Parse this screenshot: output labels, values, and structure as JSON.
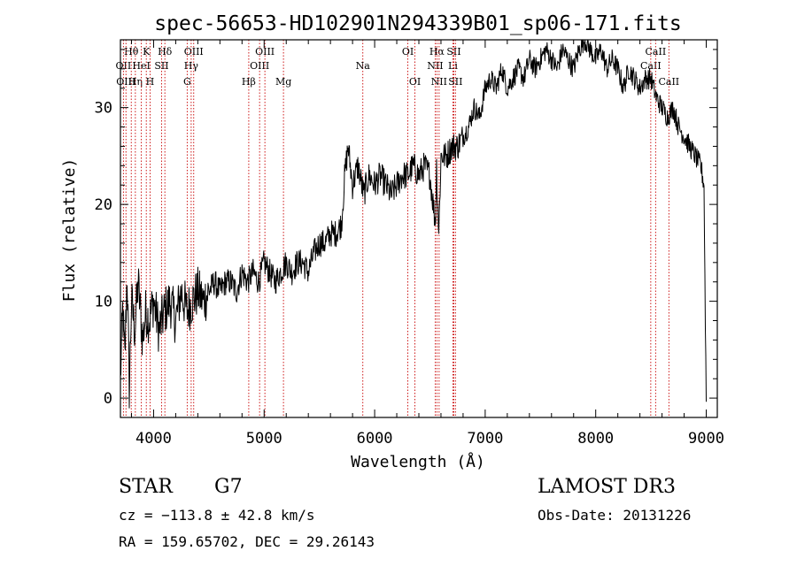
{
  "chart_data": {
    "type": "line",
    "title": "spec-56653-HD102901N294339B01_sp06-171.fits",
    "xlabel": "Wavelength (Å)",
    "ylabel": "Flux (relative)",
    "xlim": [
      3700,
      9100
    ],
    "ylim": [
      -2,
      37
    ],
    "x_ticks": [
      4000,
      5000,
      6000,
      7000,
      8000,
      9000
    ],
    "y_ticks": [
      0,
      10,
      20,
      30
    ],
    "grid": false,
    "series": [
      {
        "name": "spectrum",
        "x": [
          3700,
          3720,
          3740,
          3760,
          3780,
          3800,
          3830,
          3860,
          3900,
          3930,
          3960,
          4000,
          4050,
          4100,
          4150,
          4200,
          4250,
          4300,
          4350,
          4400,
          4450,
          4500,
          4550,
          4600,
          4650,
          4700,
          4750,
          4800,
          4850,
          4900,
          4950,
          5000,
          5050,
          5100,
          5150,
          5200,
          5250,
          5300,
          5350,
          5400,
          5450,
          5500,
          5550,
          5600,
          5650,
          5700,
          5730,
          5760,
          5800,
          5850,
          5900,
          5950,
          6000,
          6050,
          6100,
          6150,
          6200,
          6250,
          6300,
          6350,
          6400,
          6450,
          6500,
          6550,
          6560,
          6580,
          6600,
          6650,
          6700,
          6750,
          6800,
          6850,
          6900,
          6950,
          7000,
          7050,
          7100,
          7150,
          7200,
          7250,
          7300,
          7350,
          7400,
          7450,
          7500,
          7550,
          7600,
          7650,
          7700,
          7750,
          7800,
          7850,
          7900,
          7950,
          8000,
          8050,
          8100,
          8150,
          8200,
          8250,
          8300,
          8350,
          8400,
          8450,
          8500,
          8550,
          8600,
          8650,
          8700,
          8750,
          8800,
          8850,
          8900,
          8950,
          8980,
          8990,
          9000
        ],
        "y": [
          2,
          9,
          4,
          13,
          1,
          10,
          7,
          12,
          6,
          9,
          8,
          10,
          7,
          9,
          10,
          8,
          11,
          9,
          10,
          11,
          10,
          11,
          12,
          11,
          12,
          12,
          11,
          13,
          12,
          13,
          12,
          14,
          13,
          12,
          13,
          14,
          13,
          14,
          14,
          13,
          15,
          16,
          16,
          17,
          17,
          18,
          23,
          26,
          22,
          24,
          21,
          23,
          22,
          23,
          22,
          21,
          22,
          23,
          23,
          24,
          23,
          24,
          23,
          18,
          24,
          17,
          25,
          25,
          26,
          26,
          27,
          28,
          30,
          29,
          32,
          33,
          32,
          34,
          32,
          33,
          34,
          33,
          35,
          34,
          35,
          36,
          35,
          34,
          36,
          35,
          34,
          36,
          37,
          36,
          35,
          36,
          34,
          35,
          34,
          32,
          34,
          33,
          32,
          33,
          33,
          31,
          30,
          29,
          30,
          28,
          27,
          26,
          25,
          24,
          22,
          10,
          0
        ]
      }
    ],
    "line_markers": [
      {
        "label": "Hθ",
        "wavelength": 3798,
        "row": 1
      },
      {
        "label": "OII",
        "wavelength": 3727,
        "row": 2
      },
      {
        "label": "OIII",
        "wavelength": 3750,
        "row": 3
      },
      {
        "label": "Hη",
        "wavelength": 3835,
        "row": 3
      },
      {
        "label": "HeI",
        "wavelength": 3889,
        "row": 2
      },
      {
        "label": "K",
        "wavelength": 3934,
        "row": 1
      },
      {
        "label": "H",
        "wavelength": 3968,
        "row": 3
      },
      {
        "label": "SII",
        "wavelength": 4072,
        "row": 2
      },
      {
        "label": "Hδ",
        "wavelength": 4102,
        "row": 1
      },
      {
        "label": "OIII",
        "wavelength": 4363,
        "row": 1
      },
      {
        "label": "Hγ",
        "wavelength": 4340,
        "row": 2
      },
      {
        "label": "G",
        "wavelength": 4304,
        "row": 3
      },
      {
        "label": "Hβ",
        "wavelength": 4861,
        "row": 3
      },
      {
        "label": "OIII",
        "wavelength": 4959,
        "row": 2
      },
      {
        "label": "OIII",
        "wavelength": 5007,
        "row": 1
      },
      {
        "label": "Mg",
        "wavelength": 5175,
        "row": 3
      },
      {
        "label": "Na",
        "wavelength": 5893,
        "row": 2
      },
      {
        "label": "OI",
        "wavelength": 6300,
        "row": 1
      },
      {
        "label": "OI",
        "wavelength": 6364,
        "row": 3
      },
      {
        "label": "NII",
        "wavelength": 6548,
        "row": 2
      },
      {
        "label": "Hα",
        "wavelength": 6563,
        "row": 1
      },
      {
        "label": "NII",
        "wavelength": 6583,
        "row": 3
      },
      {
        "label": "Li",
        "wavelength": 6708,
        "row": 2
      },
      {
        "label": "SII",
        "wavelength": 6716,
        "row": 1
      },
      {
        "label": "SII",
        "wavelength": 6731,
        "row": 3
      },
      {
        "label": "CaII",
        "wavelength": 8498,
        "row": 2
      },
      {
        "label": "CaII",
        "wavelength": 8542,
        "row": 1
      },
      {
        "label": "CaII",
        "wavelength": 8662,
        "row": 3
      }
    ]
  },
  "info": {
    "class_label": "STAR",
    "subclass": "G7",
    "redshift_text": "cz = −113.8 ± 42.8 km/s",
    "coords_text": "RA = 159.65702, DEC =  29.26143",
    "survey": "LAMOST DR3",
    "obs_date": "Obs-Date: 20131226"
  },
  "colors": {
    "marker_line": "#c80000",
    "spectrum": "#000000"
  }
}
